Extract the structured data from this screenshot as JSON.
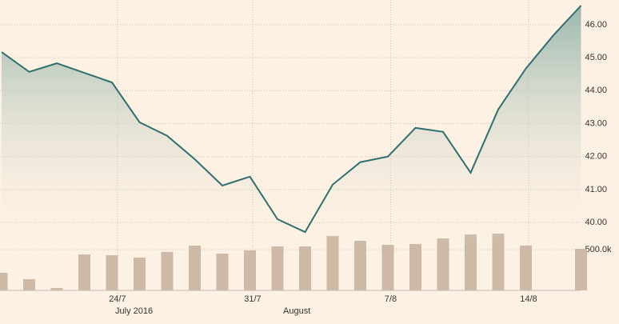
{
  "chart_data": {
    "type": "line",
    "categories": [
      null,
      null,
      null,
      null,
      null,
      null,
      null,
      null,
      null,
      null,
      null,
      null,
      null,
      null,
      null,
      null,
      null,
      null,
      null,
      null,
      null,
      null
    ],
    "series": [
      {
        "color": "#2e7070",
        "values": [
          45.17,
          44.57,
          44.83,
          44.54,
          44.25,
          43.04,
          42.63,
          41.92,
          41.12,
          41.39,
          40.1,
          39.71,
          41.15,
          41.83,
          42.0,
          42.87,
          42.75,
          41.51,
          43.43,
          44.67,
          45.68,
          46.58
        ]
      },
      {
        "type": "bar",
        "axis": "y2",
        "color": "#cdb9a6",
        "values": [
          216000,
          137000,
          29000,
          441000,
          431000,
          402000,
          471000,
          549000,
          451000,
          490000,
          539000,
          539000,
          667000,
          608000,
          559000,
          569000,
          637000,
          686000,
          696000,
          549000,
          null,
          510000
        ]
      }
    ],
    "xticks": [
      {
        "value": 4.2,
        "label": "24/7"
      },
      {
        "value": 9.1,
        "label": "31/7"
      },
      {
        "value": 14.1,
        "label": "7/8"
      },
      {
        "value": 19.1,
        "label": "14/8"
      }
    ],
    "month_labels": [
      {
        "value": 4.8,
        "label": "July 2016"
      },
      {
        "value": 10.7,
        "label": "August"
      }
    ],
    "ylim": [
      37.94,
      46.75
    ],
    "yticks": [
      {
        "value": 40,
        "label": "40.00"
      },
      {
        "value": 41,
        "label": "41.00"
      },
      {
        "value": 42,
        "label": "42.00"
      },
      {
        "value": 43,
        "label": "43.00"
      },
      {
        "value": 44,
        "label": "44.00"
      },
      {
        "value": 45,
        "label": "45.00"
      },
      {
        "value": 46,
        "label": "46.00"
      }
    ],
    "y2lim": [
      0,
      3560000
    ],
    "y2ticks": [
      {
        "value": 500000,
        "label": "500.0k"
      }
    ],
    "grid": true
  }
}
